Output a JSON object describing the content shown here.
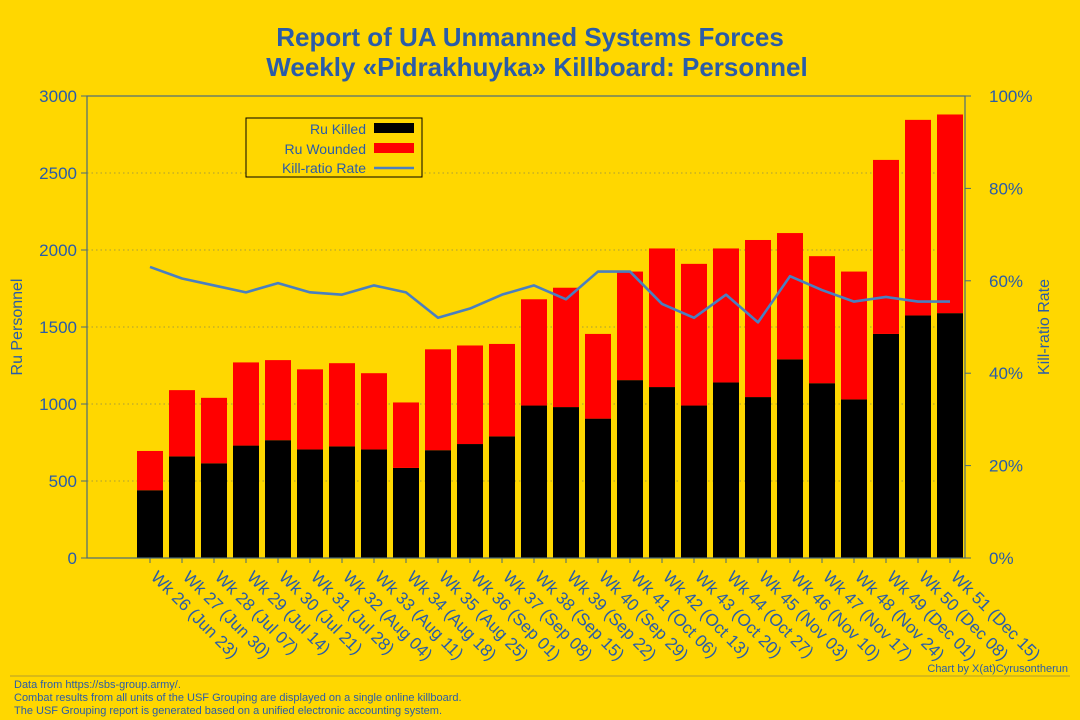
{
  "colors": {
    "background": "#FFD700",
    "text": "#2A5CA8",
    "killed": "#000000",
    "wounded": "#FF0000",
    "ratio_line": "#4A7FC0",
    "grid": "#8A8A4A"
  },
  "chart_data": {
    "type": "bar",
    "stacked": true,
    "title": "Report of UA Unmanned Systems Forces",
    "subtitle": "Weekly «Pidrakhuyka» Killboard: Personnel",
    "ylabel": "Ru Personnel",
    "y2label": "Kill-ratio Rate",
    "ylim": [
      0,
      3000
    ],
    "y2lim": [
      0,
      100
    ],
    "yticks": [
      "0",
      "500",
      "1000",
      "1500",
      "2000",
      "2500",
      "3000"
    ],
    "y2ticks": [
      "0%",
      "20%",
      "40%",
      "60%",
      "80%",
      "100%"
    ],
    "grid": "horizontal dotted",
    "legend_position": "top-left",
    "categories": [
      "Wk 26 (Jun 23)",
      "Wk 27 (Jun 30)",
      "Wk 28 (Jul 07)",
      "Wk 29 (Jul 14)",
      "Wk 30 (Jul 21)",
      "Wk 31 (Jul 28)",
      "Wk 32 (Aug 04)",
      "Wk 33 (Aug 11)",
      "Wk 34 (Aug 18)",
      "Wk 35 (Aug 25)",
      "Wk 36 (Sep 01)",
      "Wk 37 (Sep 08)",
      "Wk 38 (Sep 15)",
      "Wk 39 (Sep 22)",
      "Wk 40 (Sep 29)",
      "Wk 41 (Oct 06)",
      "Wk 42 (Oct 13)",
      "Wk 43 (Oct 20)",
      "Wk 44 (Oct 27)",
      "Wk 45 (Nov 03)",
      "Wk 46 (Nov 10)",
      "Wk 47 (Nov 17)",
      "Wk 48 (Nov 24)",
      "Wk 49 (Dec 01)",
      "Wk 50 (Dec 08)",
      "Wk 51 (Dec 15)"
    ],
    "series": [
      {
        "name": "Ru Killed",
        "axis": "left",
        "kind": "bar",
        "values": [
          440,
          660,
          615,
          730,
          765,
          705,
          725,
          705,
          585,
          700,
          740,
          790,
          990,
          980,
          905,
          1155,
          1110,
          990,
          1140,
          1045,
          1290,
          1135,
          1030,
          1455,
          1575,
          1590
        ]
      },
      {
        "name": "Ru Wounded",
        "axis": "left",
        "kind": "bar",
        "values": [
          255,
          430,
          425,
          540,
          520,
          520,
          540,
          495,
          425,
          655,
          640,
          600,
          690,
          775,
          550,
          705,
          900,
          920,
          870,
          1020,
          820,
          825,
          830,
          1130,
          1270,
          1290
        ]
      },
      {
        "name": "Kill-ratio Rate",
        "axis": "right",
        "kind": "line",
        "values": [
          63,
          60.5,
          59,
          57.5,
          59.5,
          57.5,
          57,
          59,
          57.5,
          52,
          54,
          57,
          59,
          56,
          62,
          62,
          55,
          52,
          57,
          51,
          61,
          58,
          55.5,
          56.5,
          55.5,
          55.5
        ]
      }
    ]
  },
  "footer": {
    "credit": "Chart by X(at)Cyrusontherun",
    "notes": [
      "Data from https://sbs-group.army/.",
      "Combat results from all units of the USF Grouping are displayed on a single online killboard.",
      "The USF Grouping report is generated based on a unified electronic accounting system."
    ]
  }
}
